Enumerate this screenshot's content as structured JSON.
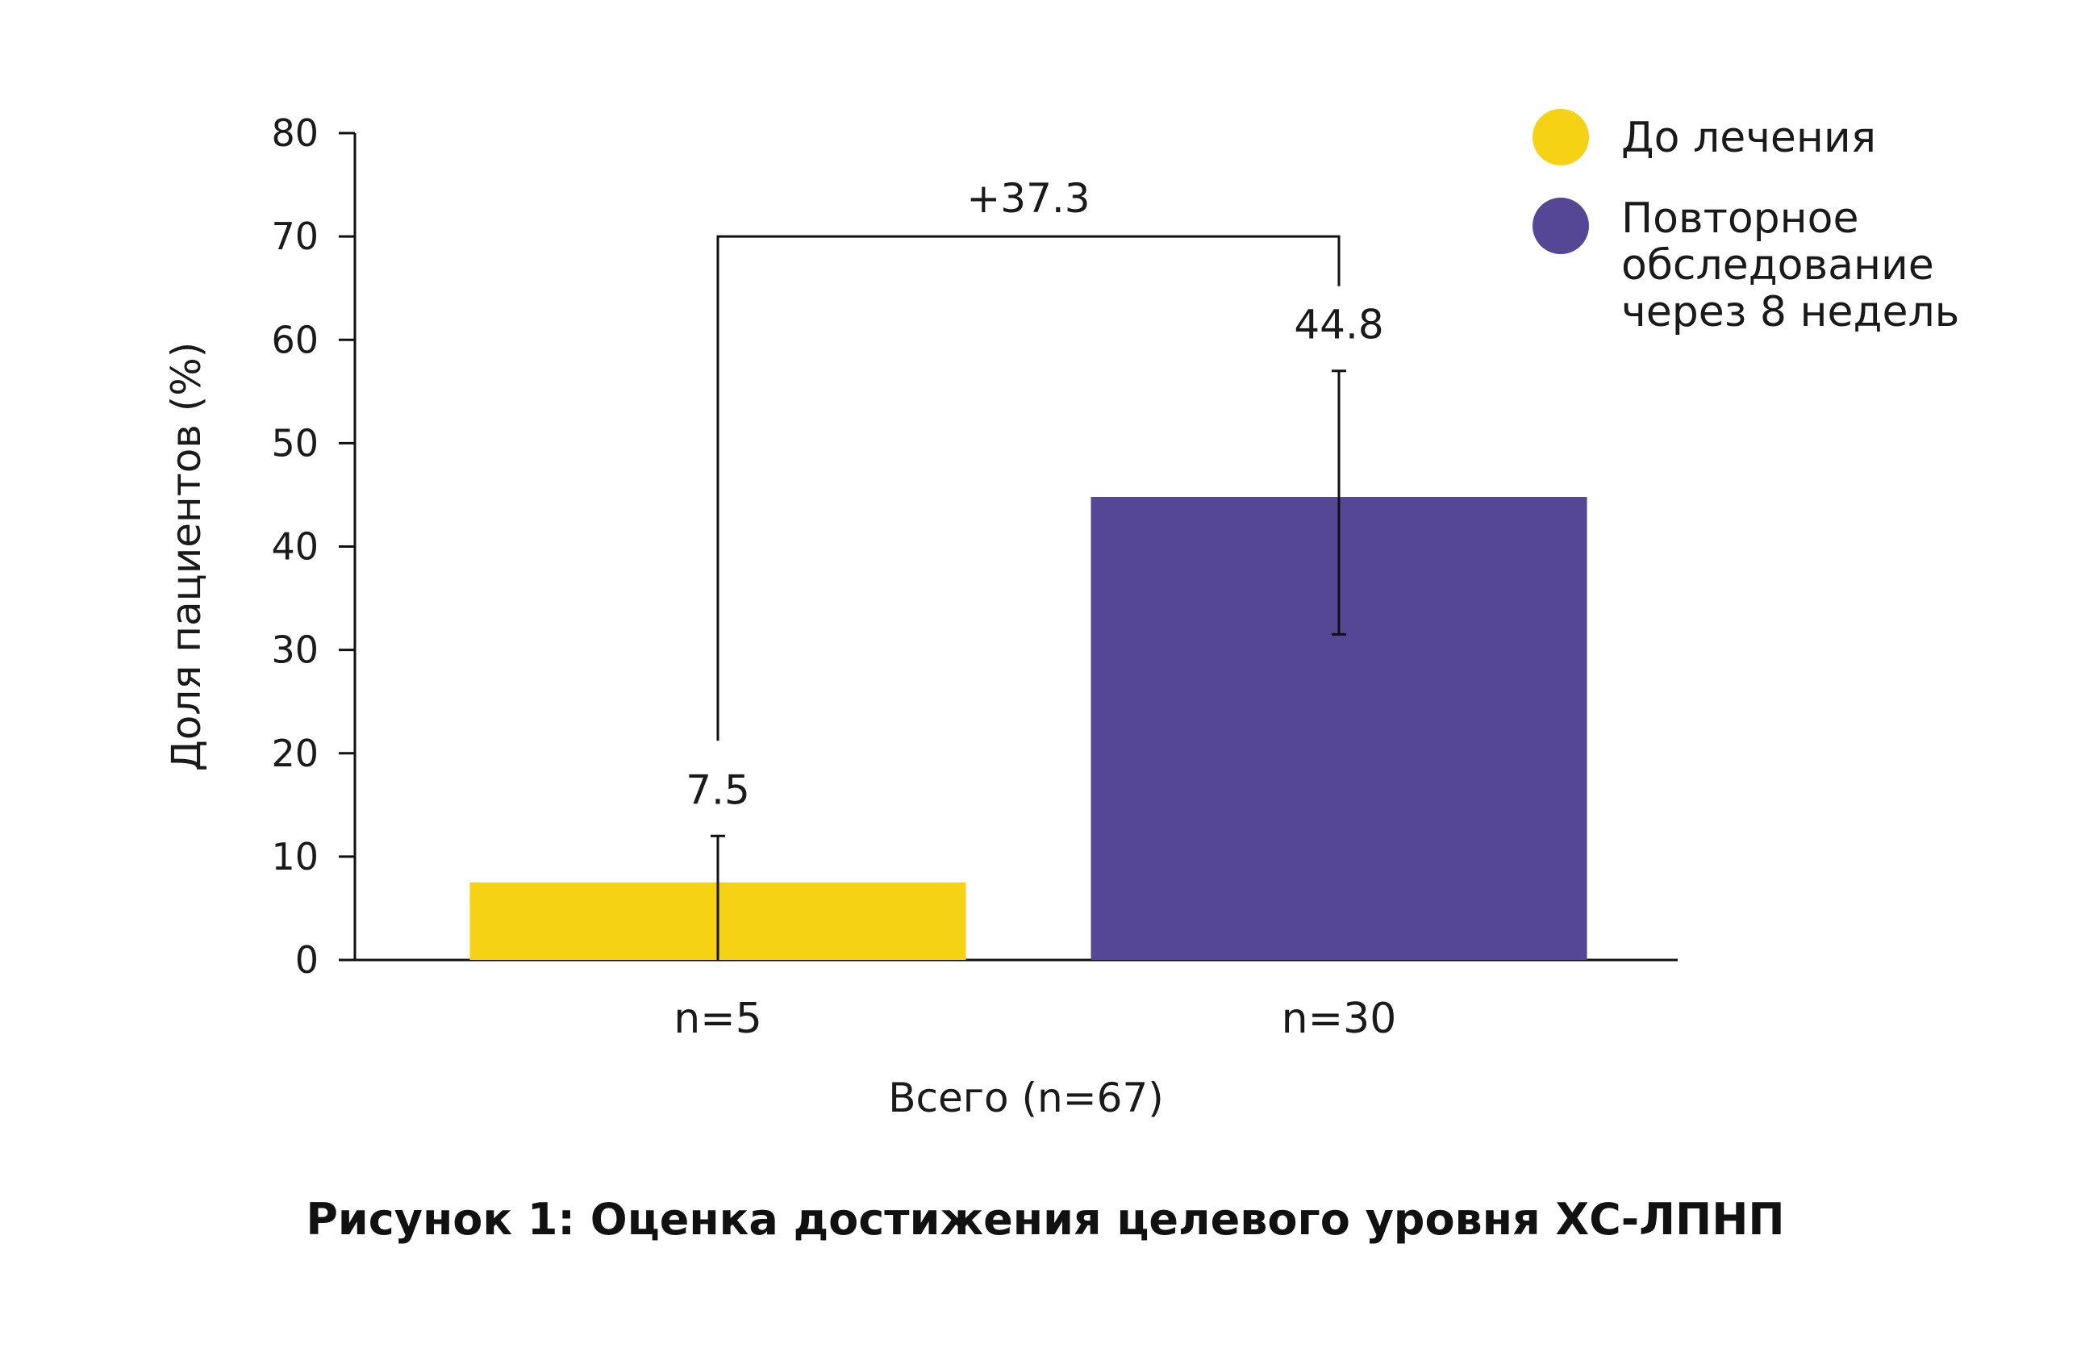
{
  "chart_data": {
    "type": "bar",
    "categories": [
      "n=5",
      "n=30"
    ],
    "xlabel": "Всего (n=67)",
    "ylabel": "Доля пациентов (%)",
    "ylim": [
      0,
      80
    ],
    "yticks": [
      0,
      10,
      20,
      30,
      40,
      50,
      60,
      70,
      80
    ],
    "grid": false,
    "legend_position": "top-right",
    "series": [
      {
        "name": "До лечения",
        "color": "#F5D214",
        "value": 7.5,
        "label": "7.5",
        "error_low": 0,
        "error_high": 12
      },
      {
        "name": "Повторное обследование через 8 недель",
        "name_lines": [
          "Повторное",
          "обследование",
          "через 8 недель"
        ],
        "color": "#554696",
        "value": 44.8,
        "label": "44.8",
        "error_low": 31.5,
        "error_high": 57
      }
    ],
    "annotation": {
      "text": "+37.3",
      "bracket_level": 70
    }
  },
  "caption": "Рисунок 1: Оценка достижения целевого уровня ХС-ЛПНП"
}
